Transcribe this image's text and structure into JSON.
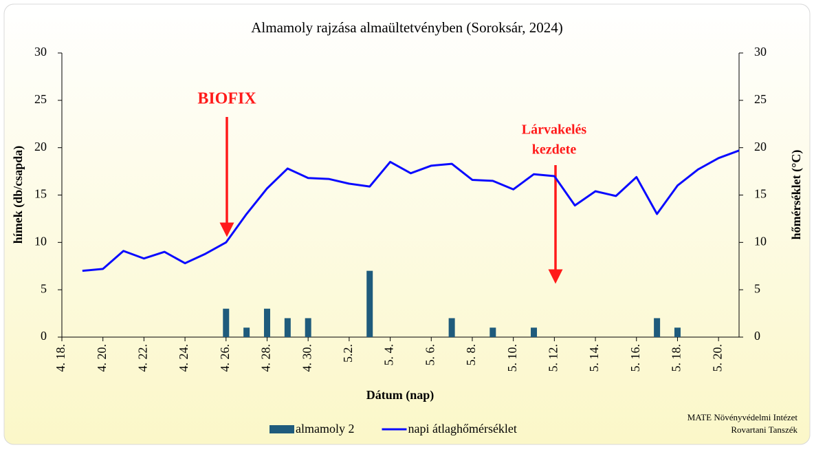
{
  "chart_data": {
    "type": "bar-line",
    "title": "Almamoly rajzása almaültetvényben (Soroksár, 2024)",
    "x_label": "Dátum (nap)",
    "y_label": "hímek (db/csapda)",
    "y2_label": "hőmérséklet (°C)",
    "categories": [
      "4. 18.",
      null,
      "4. 20.",
      null,
      "4. 22.",
      null,
      "4. 24.",
      null,
      "4. 26.",
      null,
      "4. 28.",
      null,
      "4. 30.",
      null,
      "5.2.",
      null,
      "5. 4.",
      null,
      "5. 6.",
      null,
      "5. 8.",
      null,
      "5. 10.",
      null,
      "5. 12.",
      null,
      "5. 14.",
      null,
      "5. 16.",
      null,
      "5. 18.",
      null,
      "5. 20.",
      null
    ],
    "series": [
      {
        "name": "almamoly 2",
        "kind": "bar",
        "color": "#1f5b7c",
        "values": [
          0,
          0,
          0,
          0,
          0,
          0,
          0,
          0,
          3,
          1,
          3,
          2,
          2,
          0,
          0,
          7,
          0,
          0,
          0,
          2,
          0,
          1,
          0,
          1,
          0,
          0,
          0,
          0,
          0,
          2,
          1,
          0,
          0,
          0
        ]
      },
      {
        "name": "napi átlaghőmérséklet",
        "kind": "line",
        "color": "#0a0aff",
        "axis": "y2",
        "values": [
          null,
          7.0,
          7.2,
          9.1,
          8.3,
          9.0,
          7.8,
          8.8,
          10.0,
          13.0,
          15.7,
          17.8,
          16.8,
          16.7,
          16.2,
          15.9,
          18.5,
          17.3,
          18.1,
          18.3,
          16.6,
          16.5,
          15.6,
          17.2,
          17.0,
          13.9,
          15.4,
          14.9,
          16.9,
          13.0,
          16.0,
          17.7,
          18.9,
          19.7
        ]
      }
    ],
    "ylim": [
      0,
      30
    ],
    "yticks": [
      0,
      5,
      10,
      15,
      20,
      25,
      30
    ],
    "y2lim": [
      0,
      30
    ],
    "y2ticks": [
      0,
      5,
      10,
      15,
      20,
      25,
      30
    ],
    "annotations": [
      "BIOFIX",
      "Lárvakelés",
      "kezdete"
    ],
    "credit": [
      "MATE Növényvédelmi Intézet",
      "Rovartani Tanszék"
    ]
  }
}
